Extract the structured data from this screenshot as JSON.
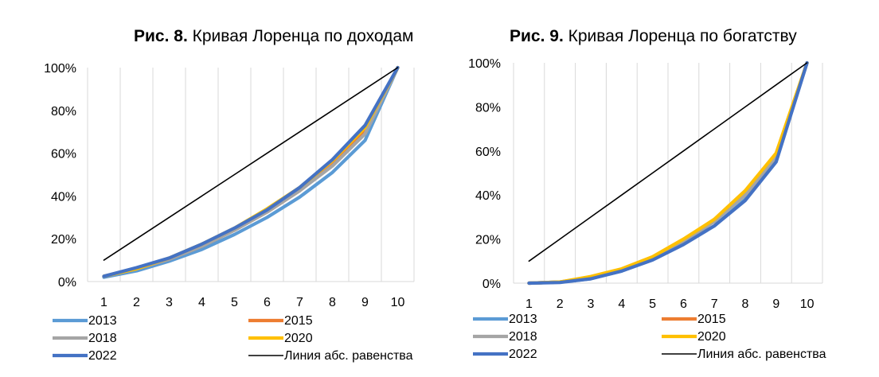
{
  "figures": [
    {
      "label": "Рис. 8.",
      "title": "Кривая Лоренца по доходам"
    },
    {
      "label": "Рис. 9.",
      "title": "Кривая Лоренца по богатству"
    }
  ],
  "series_colors": {
    "2013": "#5b9bd5",
    "2015": "#ed7d31",
    "2018": "#a5a5a5",
    "2020": "#ffc000",
    "2022": "#4472c4",
    "Линия абс. равенства": "#000000"
  },
  "chart_data": [
    {
      "type": "line",
      "title": "Рис. 8. Кривая Лоренца по доходам",
      "x": [
        1,
        2,
        3,
        4,
        5,
        6,
        7,
        8,
        9,
        10
      ],
      "yticks": [
        "0%",
        "20%",
        "40%",
        "60%",
        "80%",
        "100%"
      ],
      "ylim": [
        0,
        100
      ],
      "grid": "vertical",
      "legend": "bottom",
      "series": [
        {
          "name": "2013",
          "values": [
            2,
            5,
            9.5,
            15,
            22,
            30,
            39.5,
            51,
            66,
            100
          ]
        },
        {
          "name": "2015",
          "values": [
            2.5,
            6,
            10.5,
            16.5,
            24,
            32.5,
            42.5,
            54.5,
            70,
            100
          ]
        },
        {
          "name": "2018",
          "values": [
            2.5,
            6,
            10.5,
            16.5,
            24,
            32.5,
            42.5,
            54,
            69,
            100
          ]
        },
        {
          "name": "2020",
          "values": [
            2.5,
            6,
            11,
            17.5,
            25,
            34,
            44,
            56.5,
            72,
            100
          ]
        },
        {
          "name": "2022",
          "values": [
            2.5,
            6.5,
            11,
            17.5,
            25,
            33.5,
            44,
            57,
            73,
            100
          ]
        },
        {
          "name": "Линия абс. равенства",
          "values": [
            10,
            20,
            30,
            40,
            50,
            60,
            70,
            80,
            90,
            100
          ]
        }
      ]
    },
    {
      "type": "line",
      "title": "Рис. 9. Кривая Лоренца по богатству",
      "x": [
        1,
        2,
        3,
        4,
        5,
        6,
        7,
        8,
        9,
        10
      ],
      "yticks": [
        "0%",
        "20%",
        "40%",
        "60%",
        "80%",
        "100%"
      ],
      "ylim": [
        0,
        100
      ],
      "grid": "vertical",
      "legend": "bottom",
      "series": [
        {
          "name": "2013",
          "values": [
            0,
            0.5,
            2,
            5.5,
            11,
            18,
            26,
            38,
            56,
            100
          ]
        },
        {
          "name": "2015",
          "values": [
            0,
            0.5,
            2.5,
            6,
            11.5,
            19,
            28,
            41,
            58,
            100
          ]
        },
        {
          "name": "2018",
          "values": [
            0,
            0.5,
            2.5,
            6,
            11.5,
            19,
            28,
            40,
            57,
            100
          ]
        },
        {
          "name": "2020",
          "values": [
            0,
            0.5,
            3,
            6.5,
            12,
            20,
            29,
            42,
            59,
            100
          ]
        },
        {
          "name": "2022",
          "values": [
            0,
            0.3,
            2,
            5.5,
            10.5,
            17.5,
            26,
            37.5,
            55,
            100
          ]
        },
        {
          "name": "Линия абс. равенства",
          "values": [
            10,
            20,
            30,
            40,
            50,
            60,
            70,
            80,
            90,
            100
          ]
        }
      ]
    }
  ]
}
